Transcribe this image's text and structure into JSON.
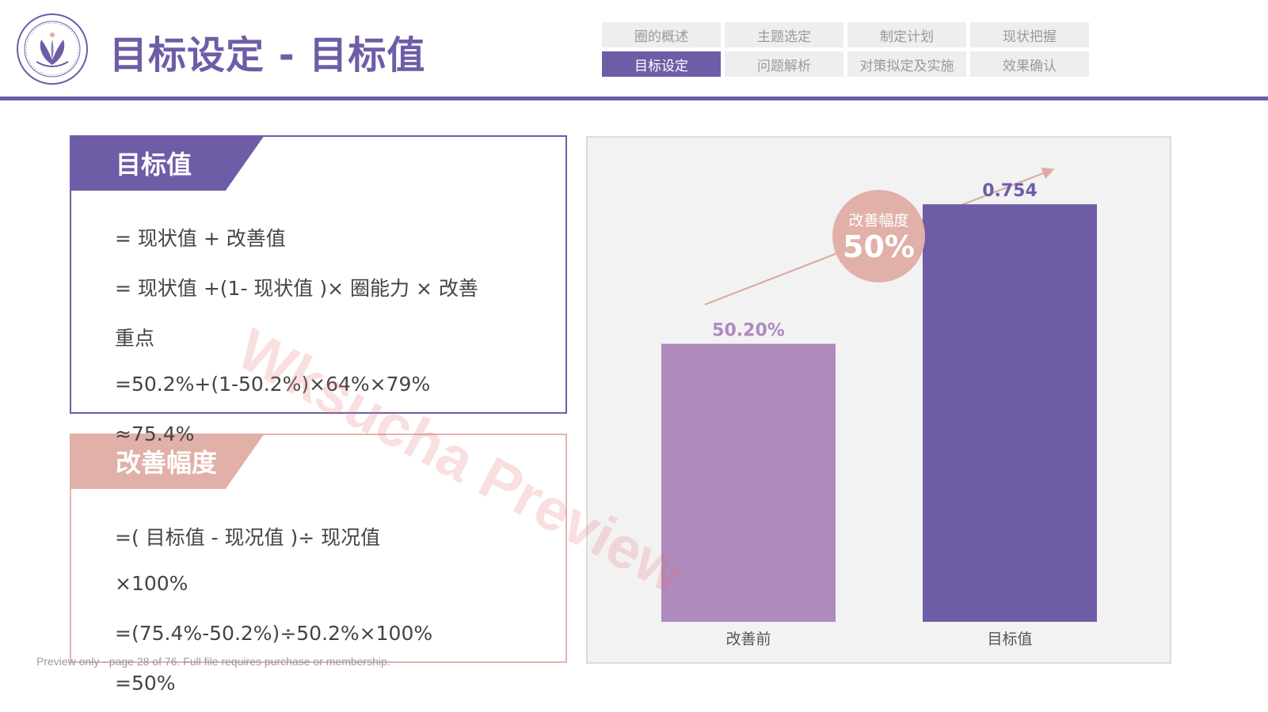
{
  "header": {
    "title": "目标设定 - 目标值",
    "nav_items": [
      {
        "label": "圈的概述",
        "active": false
      },
      {
        "label": "主题选定",
        "active": false
      },
      {
        "label": "制定计划",
        "active": false
      },
      {
        "label": "现状把握",
        "active": false
      },
      {
        "label": "目标设定",
        "active": true
      },
      {
        "label": "问题解析",
        "active": false
      },
      {
        "label": "对策拟定及实施",
        "active": false
      },
      {
        "label": "效果确认",
        "active": false
      }
    ]
  },
  "target_box": {
    "title": "目标值",
    "lines": [
      "= 现状值 + 改善值",
      "= 现状值 +(1- 现状值 )× 圈能力 × 改善",
      "重点",
      "=50.2%+(1-50.2%)×64%×79%",
      "≈75.4%"
    ]
  },
  "improvement_box": {
    "title": "改善幅度",
    "lines": [
      "=( 目标值 - 现况值 )÷ 现况值",
      "×100%",
      "=(75.4%-50.2%)÷50.2%×100%",
      "=50%"
    ]
  },
  "badge": {
    "label": "改善幅度",
    "value": "50%"
  },
  "colors": {
    "brand_purple": "#6f5ca6",
    "light_purple": "#ae8abd",
    "pink": "#e0b0a9"
  },
  "chart_data": {
    "type": "bar",
    "categories": [
      "改善前",
      "目标值"
    ],
    "values": [
      0.502,
      0.754
    ],
    "data_labels": [
      "50.20%",
      "0.754"
    ],
    "bar_colors": [
      "#ae8abd",
      "#6f5ca6"
    ],
    "ylim": [
      0,
      0.8
    ],
    "grid": false,
    "trend_arrow": true
  },
  "watermark": "Wksucha Preview",
  "footer_note": "Preview only - page 28 of 76. Full file requires purchase or membership."
}
